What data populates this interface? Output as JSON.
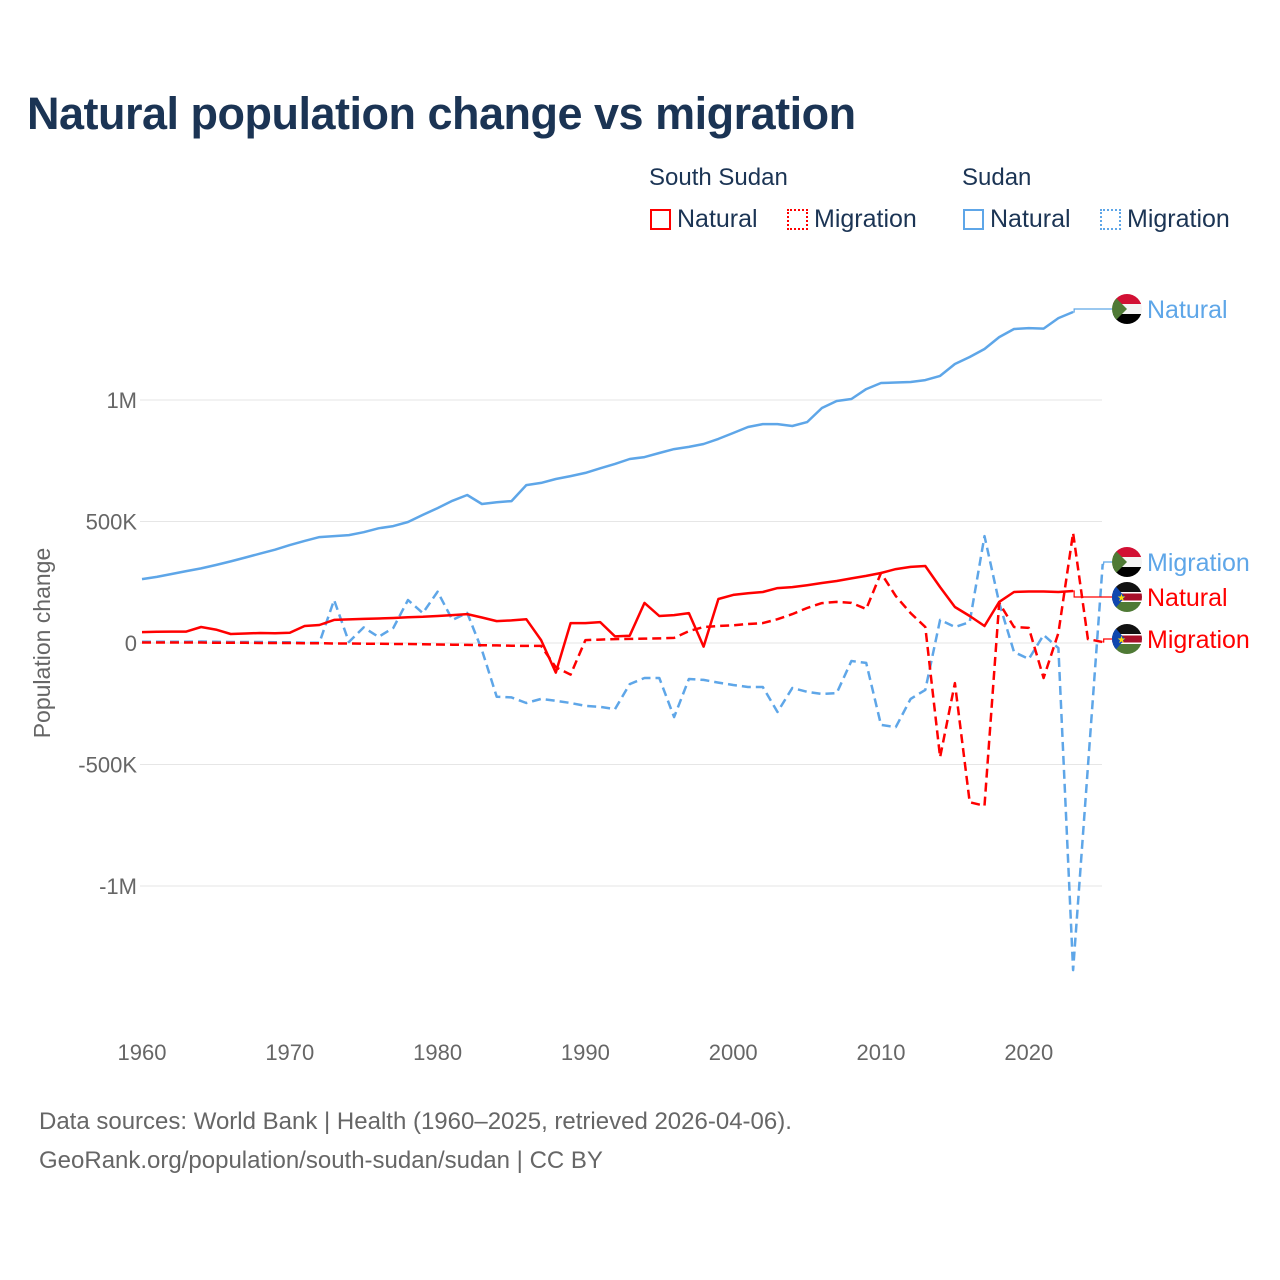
{
  "title": "Natural population change vs migration",
  "legend": {
    "groups": [
      {
        "name": "South Sudan",
        "items": [
          {
            "label": "Natural"
          },
          {
            "label": "Migration"
          }
        ]
      },
      {
        "name": "Sudan",
        "items": [
          {
            "label": "Natural"
          },
          {
            "label": "Migration"
          }
        ]
      }
    ]
  },
  "footer": {
    "line1": "Data sources: World Bank | Health (1960–2025, retrieved 2026-04-06).",
    "line2": "GeoRank.org/population/south-sudan/sudan | CC BY"
  },
  "colors": {
    "south_sudan": "#ff0000",
    "sudan": "#5ea6e8",
    "grid": "#e6e6e6",
    "title": "#1b3454"
  },
  "chart_data": {
    "type": "line",
    "title": "Natural population change vs migration",
    "xlabel": "",
    "ylabel": "Population change",
    "xlim": [
      1960,
      2025
    ],
    "ylim": [
      -1400000,
      1400000
    ],
    "grid": true,
    "legend_position": "top-right",
    "x_ticks": [
      {
        "value": 1960,
        "label": "1960"
      },
      {
        "value": 1970,
        "label": "1970"
      },
      {
        "value": 1980,
        "label": "1980"
      },
      {
        "value": 1990,
        "label": "1990"
      },
      {
        "value": 2000,
        "label": "2000"
      },
      {
        "value": 2010,
        "label": "2010"
      },
      {
        "value": 2020,
        "label": "2020"
      }
    ],
    "y_ticks": [
      {
        "value": 1000000,
        "label": "1M"
      },
      {
        "value": 500000,
        "label": "500K"
      },
      {
        "value": 0,
        "label": "0"
      },
      {
        "value": -500000,
        "label": "-500K"
      },
      {
        "value": -1000000,
        "label": "-1M"
      }
    ],
    "x_start": 1960,
    "series": [
      {
        "name": "Sudan Natural",
        "label": "Natural",
        "country": "Sudan",
        "color": "#5ea6e8",
        "dashed": false,
        "flag": "sudan",
        "values": [
          263000,
          272000,
          284000,
          296000,
          307000,
          321000,
          336000,
          352000,
          368000,
          384000,
          403000,
          420000,
          436000,
          440000,
          444000,
          456000,
          472000,
          481000,
          498000,
          527000,
          555000,
          585000,
          609000,
          572000,
          579000,
          584000,
          650000,
          659000,
          675000,
          687000,
          700000,
          719000,
          737000,
          757000,
          765000,
          782000,
          798000,
          807000,
          819000,
          840000,
          864000,
          889000,
          901000,
          901000,
          893000,
          909000,
          967000,
          996000,
          1004000,
          1045000,
          1070000,
          1072000,
          1074000,
          1082000,
          1099000,
          1148000,
          1177000,
          1210000,
          1259000,
          1292000,
          1296000,
          1294000,
          1337000,
          1362000,
          null,
          null
        ]
      },
      {
        "name": "Sudan Migration",
        "label": "Migration",
        "country": "Sudan",
        "color": "#5ea6e8",
        "dashed": true,
        "flag": "sudan",
        "values": [
          5000,
          5000,
          5000,
          5000,
          6000,
          5000,
          4000,
          4000,
          4000,
          3000,
          3000,
          1000,
          1000,
          177000,
          4000,
          64000,
          25000,
          62000,
          177000,
          123000,
          211000,
          95000,
          124000,
          -29000,
          -221000,
          -224000,
          -247000,
          -230000,
          -238000,
          -247000,
          -259000,
          -263000,
          -272000,
          -169000,
          -144000,
          -144000,
          -305000,
          -148000,
          -152000,
          -163000,
          -173000,
          -181000,
          -181000,
          -284000,
          -185000,
          -201000,
          -210000,
          -206000,
          -74000,
          -82000,
          -337000,
          -346000,
          -230000,
          -193000,
          95000,
          66000,
          86000,
          440000,
          165000,
          -37000,
          -66000,
          33000,
          -21000,
          -1346000,
          -510000,
          325000
        ]
      },
      {
        "name": "South Sudan Natural",
        "label": "Natural",
        "country": "South Sudan",
        "color": "#ff0000",
        "dashed": false,
        "flag": "south-sudan",
        "values": [
          45000,
          46000,
          47000,
          47000,
          66000,
          55000,
          37000,
          39000,
          41000,
          40000,
          42000,
          70000,
          74000,
          95000,
          97000,
          99000,
          101000,
          103000,
          106000,
          108000,
          111000,
          115000,
          119000,
          105000,
          90000,
          93000,
          98000,
          12000,
          -122000,
          82000,
          82000,
          86000,
          27000,
          30000,
          165000,
          111000,
          115000,
          123000,
          -15000,
          181000,
          198000,
          205000,
          210000,
          226000,
          230000,
          238000,
          247000,
          255000,
          266000,
          276000,
          288000,
          304000,
          313000,
          317000,
          230000,
          148000,
          111000,
          70000,
          169000,
          210000,
          212000,
          212000,
          210000,
          214000,
          null,
          null
        ]
      },
      {
        "name": "South Sudan Migration",
        "label": "Migration",
        "country": "South Sudan",
        "color": "#ff0000",
        "dashed": true,
        "flag": "south-sudan",
        "values": [
          2000,
          2000,
          2000,
          2000,
          2000,
          1000,
          1000,
          1000,
          0,
          0,
          0,
          -1000,
          -1000,
          -2000,
          -2000,
          -3000,
          -3000,
          -4000,
          -4000,
          -5000,
          -6000,
          -7000,
          -8000,
          -9000,
          -10000,
          -11000,
          -12000,
          -12000,
          -100000,
          -130000,
          12000,
          14000,
          16000,
          17000,
          18000,
          19000,
          21000,
          49000,
          66000,
          70000,
          73000,
          78000,
          82000,
          98000,
          119000,
          144000,
          164000,
          169000,
          165000,
          140000,
          288000,
          193000,
          123000,
          66000,
          -470000,
          -165000,
          -655000,
          -670000,
          165000,
          66000,
          62000,
          -144000,
          41000,
          453000,
          16000,
          4000
        ]
      }
    ]
  }
}
